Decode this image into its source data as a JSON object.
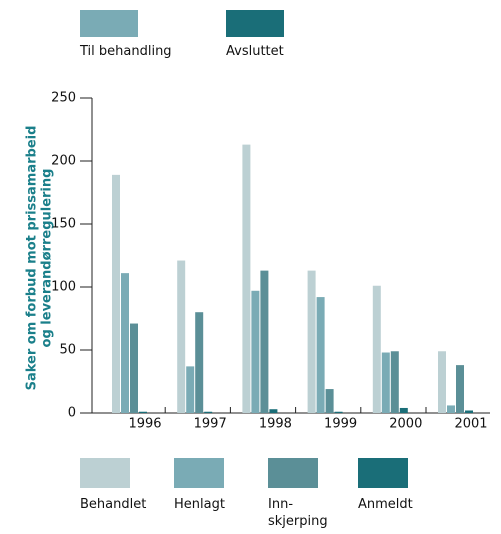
{
  "chart_data": {
    "type": "bar",
    "ylabel": [
      "Saker om forbud mot prissamarbeid",
      "og leverandørregulering"
    ],
    "legend_groups": [
      {
        "name": "Til behandling",
        "color": "#7aabb5"
      },
      {
        "name": "Avsluttet",
        "color": "#1a6e78"
      }
    ],
    "categories": [
      "1996",
      "1997",
      "1998",
      "1999",
      "2000",
      "2001"
    ],
    "series": [
      {
        "name": "Behandlet",
        "color": "#bcd0d3",
        "values": [
          189,
          121,
          213,
          113,
          101,
          49
        ]
      },
      {
        "name": "Henlagt",
        "color": "#7aabb5",
        "values": [
          111,
          37,
          97,
          92,
          48,
          6
        ]
      },
      {
        "name": "Inn-\nskjerping",
        "color": "#5b8f97",
        "values": [
          71,
          80,
          113,
          19,
          49,
          38
        ]
      },
      {
        "name": "Anmeldt",
        "color": "#1a6e78",
        "values": [
          1,
          1,
          3,
          1,
          4,
          2
        ]
      }
    ],
    "ylim": [
      0,
      250
    ],
    "yticks": [
      0,
      50,
      100,
      150,
      200,
      250
    ]
  }
}
